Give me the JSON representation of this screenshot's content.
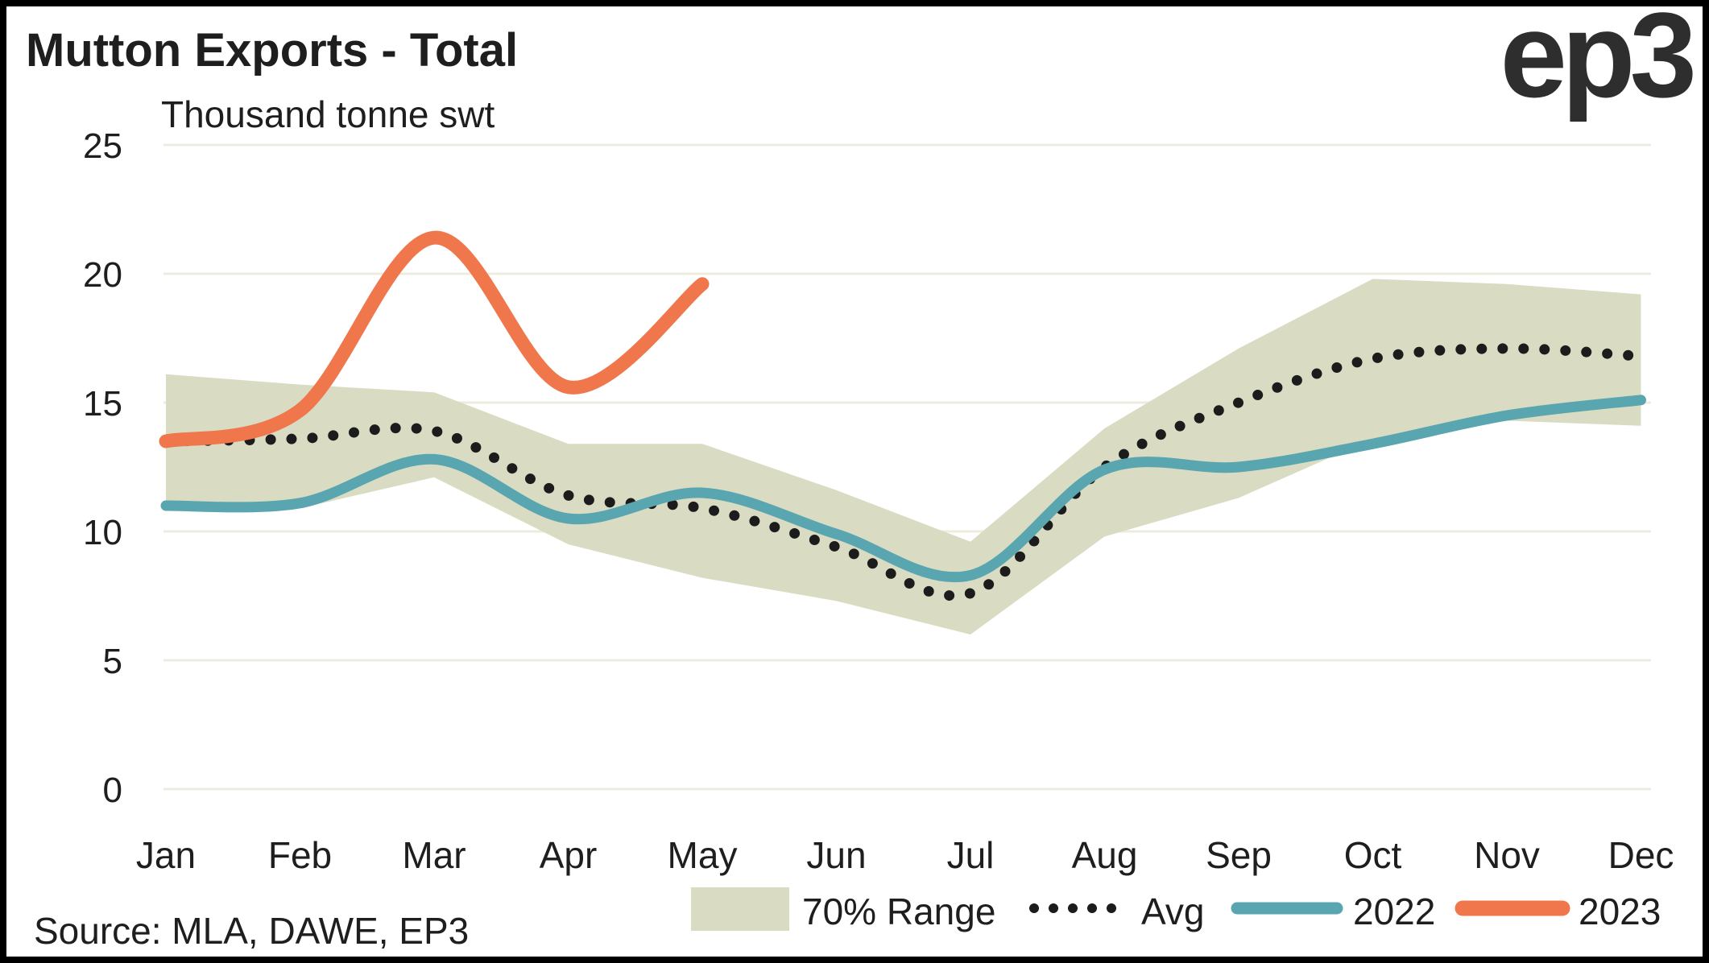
{
  "header": {
    "title": "Mutton Exports - Total",
    "subtitle": "Thousand tonne swt",
    "logo": "ep3"
  },
  "footer": {
    "source": "Source: MLA, DAWE, EP3"
  },
  "colors": {
    "background": "#ffffff",
    "border": "#000000",
    "gridline": "#eeecdf",
    "text": "#1e1e1e",
    "band": "#d9dcc2",
    "avg": "#1c1c1c",
    "y2022": "#5aa6b0",
    "y2023": "#f0764b"
  },
  "chart_data": {
    "type": "line",
    "title": "Mutton Exports - Total",
    "ylabel": "Thousand tonne swt",
    "xlabel": "",
    "ylim": [
      0,
      25
    ],
    "yticks": [
      0,
      5,
      10,
      15,
      20,
      25
    ],
    "grid": "horizontal",
    "legend_position": "bottom",
    "categories": [
      "Jan",
      "Feb",
      "Mar",
      "Apr",
      "May",
      "Jun",
      "Jul",
      "Aug",
      "Sep",
      "Oct",
      "Nov",
      "Dec"
    ],
    "band": {
      "name": "70% Range",
      "color": "#d9dcc2",
      "upper": [
        16.1,
        15.7,
        15.4,
        13.4,
        13.4,
        11.6,
        9.6,
        14.0,
        17.1,
        19.8,
        19.6,
        19.2
      ],
      "lower": [
        10.9,
        10.9,
        12.1,
        9.5,
        8.2,
        7.3,
        6.0,
        9.8,
        11.3,
        13.6,
        14.3,
        14.1
      ]
    },
    "series": [
      {
        "name": "Avg",
        "style": "dotted",
        "color": "#1c1c1c",
        "values": [
          13.5,
          13.6,
          13.9,
          11.4,
          10.9,
          9.4,
          7.6,
          12.5,
          15.0,
          16.7,
          17.1,
          16.8
        ]
      },
      {
        "name": "2022",
        "style": "solid",
        "color": "#5aa6b0",
        "values": [
          11.0,
          11.1,
          12.8,
          10.5,
          11.5,
          9.9,
          8.3,
          12.4,
          12.5,
          13.4,
          14.5,
          15.1
        ]
      },
      {
        "name": "2023",
        "style": "solid",
        "color": "#f0764b",
        "values": [
          13.5,
          14.7,
          21.4,
          15.6,
          19.6,
          null,
          null,
          null,
          null,
          null,
          null,
          null
        ]
      }
    ]
  }
}
